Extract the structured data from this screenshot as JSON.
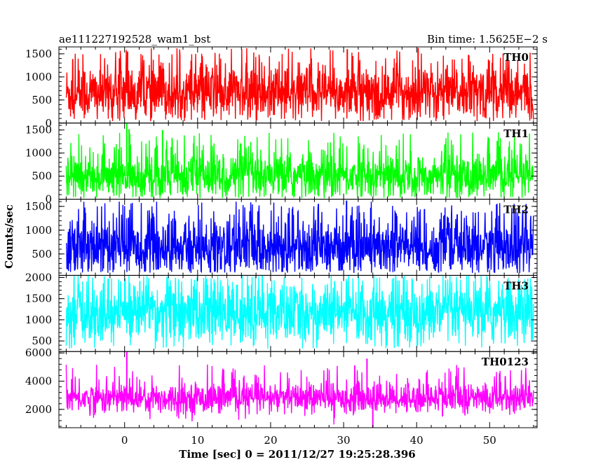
{
  "header": {
    "title": "ae111227192528_wam1_bst",
    "bin_time": "Bin time: 1.5625E−2 s"
  },
  "chart_data": {
    "type": "line",
    "xlabel": "Time [sec] 0 = 2011/12/27 19:25:28.396",
    "ylabel": "Counts/sec",
    "xlim": [
      -9,
      56.5
    ],
    "x_ticks": [
      0,
      10,
      20,
      30,
      40,
      50
    ],
    "x_range_data": [
      -8,
      56
    ],
    "panels": [
      {
        "name": "TH0",
        "color": "#ff0000",
        "ylim": [
          0,
          1650
        ],
        "yticks": [
          0,
          500,
          1000,
          1500
        ],
        "baseline": 650,
        "noise": 320,
        "spike_max": 1620,
        "floor": 40,
        "burst": [
          {
            "x": 0.4,
            "y": 1550
          },
          {
            "x": 30.5,
            "y": 1600
          },
          {
            "x": 40.2,
            "y": 1630
          }
        ]
      },
      {
        "name": "TH1",
        "color": "#00ff00",
        "ylim": [
          0,
          1650
        ],
        "yticks": [
          0,
          500,
          1000,
          1500
        ],
        "baseline": 500,
        "noise": 260,
        "spike_max": 1450,
        "floor": 20,
        "burst": [
          {
            "x": 0.3,
            "y": 1660
          },
          {
            "x": 0.6,
            "y": 1520
          },
          {
            "x": 5.2,
            "y": 1500
          }
        ]
      },
      {
        "name": "TH2",
        "color": "#0000ff",
        "ylim": [
          50,
          1650
        ],
        "yticks": [
          500,
          1000,
          1500
        ],
        "baseline": 650,
        "noise": 320,
        "spike_max": 1600,
        "floor": 100,
        "burst": [
          {
            "x": 30.4,
            "y": 1620
          }
        ]
      },
      {
        "name": "TH3",
        "color": "#00ffff",
        "ylim": [
          250,
          2050
        ],
        "yticks": [
          500,
          1000,
          1500,
          2000
        ],
        "baseline": 1150,
        "noise": 380,
        "spike_max": 2050,
        "floor": 300,
        "burst": []
      },
      {
        "name": "TH0123",
        "color": "#ff00ff",
        "ylim": [
          700,
          6100
        ],
        "yticks": [
          2000,
          4000,
          6000
        ],
        "baseline": 2800,
        "noise": 550,
        "spike_max": 5200,
        "floor": 900,
        "burst": [
          {
            "x": 0.3,
            "y": 6100
          },
          {
            "x": 33.2,
            "y": 5600
          },
          {
            "x": 34.0,
            "y": 700
          }
        ]
      }
    ]
  }
}
